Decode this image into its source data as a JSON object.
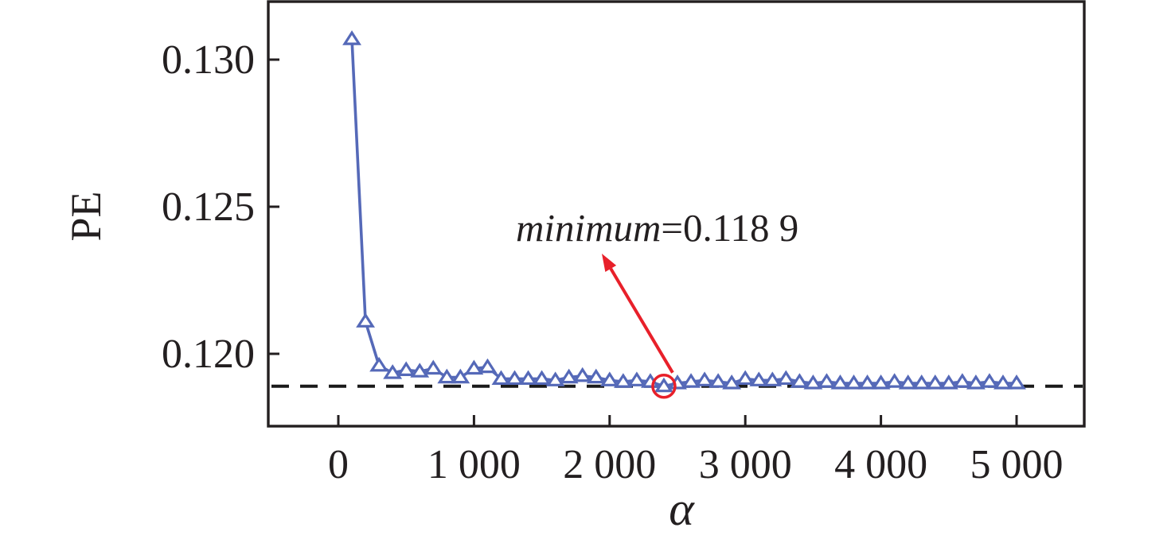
{
  "figure": {
    "ylabel": "PE",
    "xlabel": "α",
    "annotation": {
      "word": "minimum",
      "value": "=0.118 9"
    },
    "colors": {
      "series_blue": "#5569b8",
      "annotation_red": "#e8202a",
      "axis_black": "#231f20",
      "background": "#ffffff"
    }
  },
  "chart_data": {
    "type": "line",
    "title": "",
    "xlabel": "α",
    "ylabel": "PE",
    "marker": "triangle-up-open",
    "grid": false,
    "legend": null,
    "xlim": [
      -520,
      5500
    ],
    "ylim": [
      0.1175,
      0.132
    ],
    "x_ticks": [
      0,
      1000,
      2000,
      3000,
      4000,
      5000
    ],
    "x_tick_labels": [
      "0",
      "1 000",
      "2 000",
      "3 000",
      "4 000",
      "5 000"
    ],
    "y_ticks": [
      0.13,
      0.125,
      0.12
    ],
    "y_tick_labels": [
      "0.130",
      "0.125",
      "0.120"
    ],
    "dashed_line_y": 0.1189,
    "x": [
      100,
      200,
      300,
      400,
      500,
      600,
      700,
      800,
      900,
      1000,
      1100,
      1200,
      1300,
      1400,
      1500,
      1600,
      1700,
      1800,
      1900,
      2000,
      2100,
      2200,
      2300,
      2400,
      2500,
      2600,
      2700,
      2800,
      2900,
      3000,
      3100,
      3200,
      3300,
      3400,
      3500,
      3600,
      3700,
      3800,
      3900,
      4000,
      4100,
      4200,
      4300,
      4400,
      4500,
      4600,
      4700,
      4800,
      4900,
      5000
    ],
    "series": [
      {
        "name": "PE",
        "values": [
          0.1307,
          0.1211,
          0.1196,
          0.11935,
          0.11945,
          0.1194,
          0.1195,
          0.1192,
          0.1192,
          0.1195,
          0.11955,
          0.11915,
          0.11915,
          0.11915,
          0.11915,
          0.1191,
          0.1192,
          0.11925,
          0.1192,
          0.1191,
          0.11905,
          0.1191,
          0.11905,
          0.1189,
          0.119,
          0.11905,
          0.1191,
          0.11905,
          0.119,
          0.11915,
          0.1191,
          0.1191,
          0.11915,
          0.11905,
          0.119,
          0.11905,
          0.119,
          0.119,
          0.119,
          0.119,
          0.11905,
          0.119,
          0.119,
          0.119,
          0.119,
          0.11905,
          0.119,
          0.11905,
          0.119,
          0.119
        ]
      }
    ],
    "minimum": {
      "x": 2400,
      "y": 0.1189,
      "annotation": "minimum=0.118 9"
    }
  }
}
